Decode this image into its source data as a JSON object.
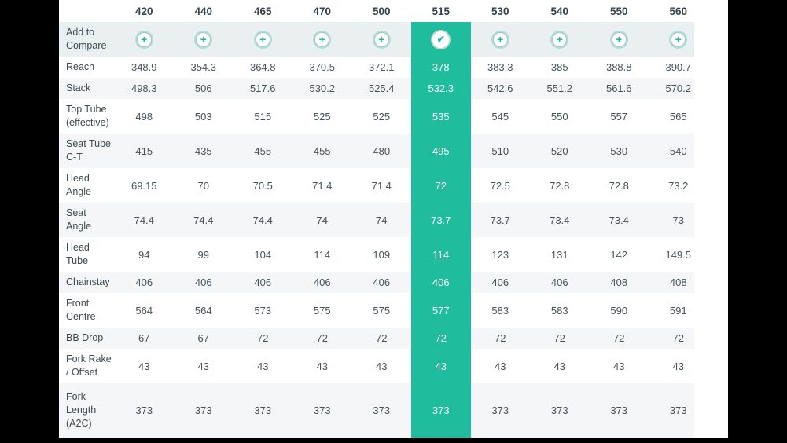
{
  "colors": {
    "accent": "#1fbc9d",
    "compare_row_bg": "#eaeff0",
    "stripe_bg": "#f4f6f7",
    "text": "#3e4a52",
    "header_text": "#35414b"
  },
  "icons": {
    "add_name": "plus-circle-icon",
    "add_glyph": "+",
    "selected_name": "check-circle-icon",
    "selected_glyph": "✔"
  },
  "table": {
    "compare_row_label": "Add to Compare",
    "sizes": [
      "420",
      "440",
      "465",
      "470",
      "500",
      "515",
      "530",
      "540",
      "550",
      "560"
    ],
    "selected_size": "515",
    "rows": [
      {
        "label": "Reach",
        "values": [
          "348.9",
          "354.3",
          "364.8",
          "370.5",
          "372.1",
          "378",
          "383.3",
          "385",
          "388.8",
          "390.7"
        ]
      },
      {
        "label": "Stack",
        "values": [
          "498.3",
          "506",
          "517.6",
          "530.2",
          "525.4",
          "532.3",
          "542.6",
          "551.2",
          "561.6",
          "570.2"
        ]
      },
      {
        "label": "Top Tube (effective)",
        "values": [
          "498",
          "503",
          "515",
          "525",
          "525",
          "535",
          "545",
          "550",
          "557",
          "565"
        ]
      },
      {
        "label": "Seat Tube C-T",
        "values": [
          "415",
          "435",
          "455",
          "455",
          "480",
          "495",
          "510",
          "520",
          "530",
          "540"
        ]
      },
      {
        "label": "Head Angle",
        "values": [
          "69.15",
          "70",
          "70.5",
          "71.4",
          "71.4",
          "72",
          "72.5",
          "72.8",
          "72.8",
          "73.2"
        ]
      },
      {
        "label": "Seat Angle",
        "values": [
          "74.4",
          "74.4",
          "74.4",
          "74",
          "74",
          "73.7",
          "73.7",
          "73.4",
          "73.4",
          "73"
        ]
      },
      {
        "label": "Head Tube",
        "values": [
          "94",
          "99",
          "104",
          "114",
          "109",
          "114",
          "123",
          "131",
          "142",
          "149.5"
        ]
      },
      {
        "label": "Chainstay",
        "values": [
          "406",
          "406",
          "406",
          "406",
          "406",
          "406",
          "406",
          "406",
          "408",
          "408"
        ]
      },
      {
        "label": "Front Centre",
        "values": [
          "564",
          "564",
          "573",
          "575",
          "575",
          "577",
          "583",
          "583",
          "590",
          "591"
        ]
      },
      {
        "label": "BB Drop",
        "values": [
          "67",
          "67",
          "72",
          "72",
          "72",
          "72",
          "72",
          "72",
          "72",
          "72"
        ]
      },
      {
        "label": "Fork Rake / Offset",
        "values": [
          "43",
          "43",
          "43",
          "43",
          "43",
          "43",
          "43",
          "43",
          "43",
          "43"
        ]
      },
      {
        "label": "Fork Length (A2C)",
        "values": [
          "373",
          "373",
          "373",
          "373",
          "373",
          "373",
          "373",
          "373",
          "373",
          "373"
        ]
      }
    ]
  }
}
